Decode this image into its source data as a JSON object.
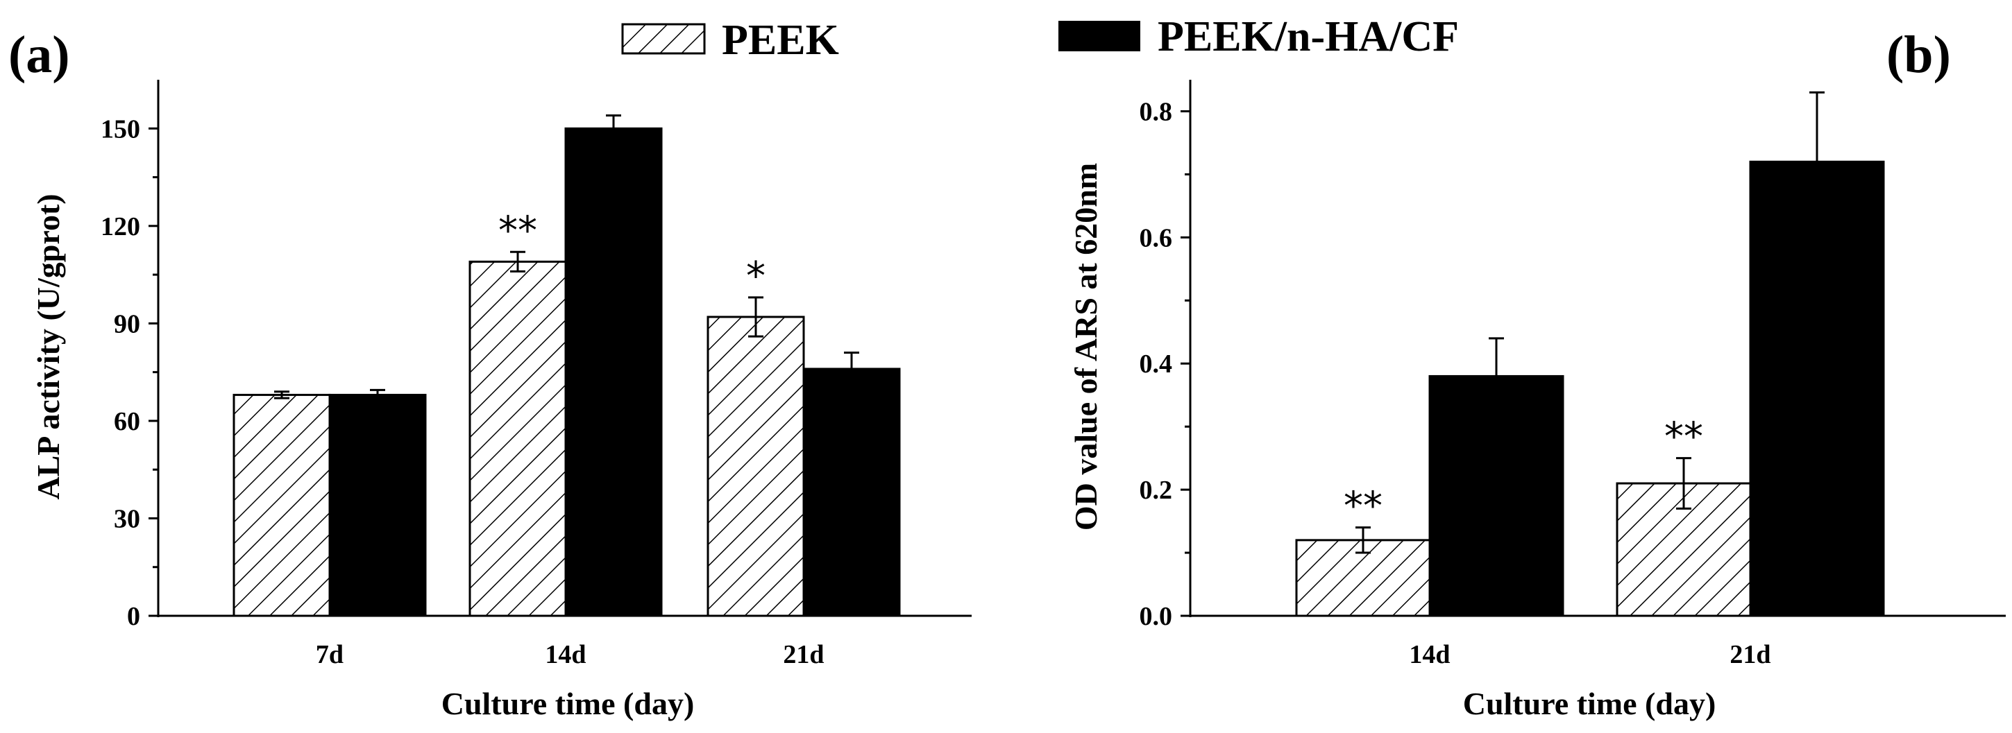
{
  "legend": {
    "items": [
      {
        "label": "PEEK",
        "pattern": "hatch"
      },
      {
        "label": "PEEK/n-HA/CF",
        "pattern": "solid"
      }
    ]
  },
  "colors": {
    "bar_fill": "#000000",
    "axis": "#000000",
    "background": "#ffffff"
  },
  "panel_a": {
    "label": "(a)"
  },
  "panel_b": {
    "label": "(b)"
  },
  "chart_data": [
    {
      "type": "bar",
      "panel": "(a)",
      "categories": [
        "7d",
        "14d",
        "21d"
      ],
      "xlabel": "Culture time (day)",
      "ylabel": "ALP activity (U/gprot)",
      "ylim": [
        0,
        165
      ],
      "yticks": [
        0,
        30,
        60,
        90,
        120,
        150
      ],
      "series": [
        {
          "name": "PEEK",
          "pattern": "hatch",
          "values": [
            68,
            109,
            92
          ],
          "errors": [
            1,
            3,
            6
          ]
        },
        {
          "name": "PEEK/n-HA/CF",
          "pattern": "solid",
          "values": [
            68,
            150,
            76
          ],
          "errors": [
            1.5,
            4,
            5
          ]
        }
      ],
      "annotations": [
        {
          "category": "14d",
          "series": "PEEK",
          "text": "**"
        },
        {
          "category": "21d",
          "series": "PEEK",
          "text": "*"
        }
      ],
      "grid": false
    },
    {
      "type": "bar",
      "panel": "(b)",
      "categories": [
        "14d",
        "21d"
      ],
      "xlabel": "Culture time (day)",
      "ylabel": "OD value of ARS at 620nm",
      "ylim": [
        0,
        0.85
      ],
      "yticks": [
        "0.0",
        "0.2",
        "0.4",
        "0.6",
        "0.8"
      ],
      "series": [
        {
          "name": "PEEK",
          "pattern": "hatch",
          "values": [
            0.12,
            0.21
          ],
          "errors": [
            0.02,
            0.04
          ]
        },
        {
          "name": "PEEK/n-HA/CF",
          "pattern": "solid",
          "values": [
            0.38,
            0.72
          ],
          "errors": [
            0.06,
            0.11
          ]
        }
      ],
      "annotations": [
        {
          "category": "14d",
          "series": "PEEK",
          "text": "**"
        },
        {
          "category": "21d",
          "series": "PEEK",
          "text": "**"
        }
      ],
      "grid": false
    }
  ]
}
